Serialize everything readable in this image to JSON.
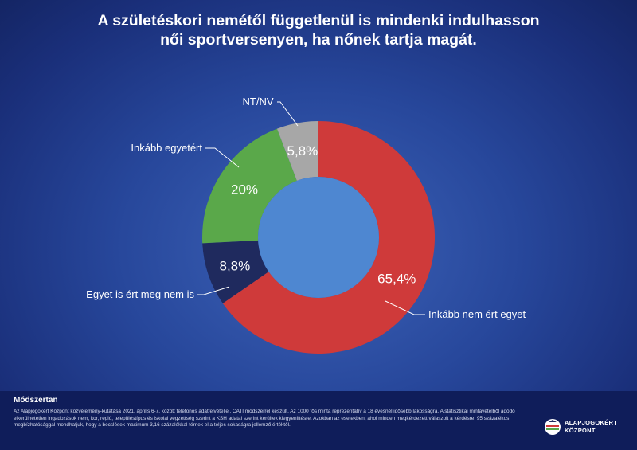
{
  "title": {
    "line1": "A születéskori nemétől függetlenül is mindenki indulhasson",
    "line2": "női sportversenyen, ha nőnek tartja magát."
  },
  "chart_data": {
    "type": "donut",
    "slices": [
      {
        "label": "Inkább nem ért egyet",
        "value": 65.4,
        "display": "65,4%",
        "color": "#cf3a3a"
      },
      {
        "label": "Egyet is ért meg nem is",
        "value": 8.8,
        "display": "8,8%",
        "color": "#1f2a5e"
      },
      {
        "label": "Inkább egyetért",
        "value": 20.0,
        "display": "20%",
        "color": "#5aa84a"
      },
      {
        "label": "NT/NV",
        "value": 5.8,
        "display": "5,8%",
        "color": "#a7a7a7"
      }
    ],
    "center_color": "#4e87d1"
  },
  "footer": {
    "heading": "Módszertan",
    "text": "Az Alapjogokért Központ közvélemény-kutatása 2021. április 6-7. között telefonos adatfelvétellel, CATI módszerrel készült. Az 1000 fős minta reprezentatív a 18 évesnél idősebb lakosságra. A statisztikai mintavételből adódó elkerülhetetlen ingadozások nem, kor, régió, településtípus és iskolai végzettség szerint a KSH adatai szerint kerültek kiegyenlítésre. Azokban az esetekben, ahol minden megkérdezett válaszolt a kérdésre, 95 százalékos megbízhatósággal mondhatjuk, hogy a becslések maximum 3,16 százalékkal térnek el a teljes sokaságra jellemző értéktől.",
    "logo_line1": "ALAPJOGOKÉRT",
    "logo_line2": "KÖZPONT"
  }
}
